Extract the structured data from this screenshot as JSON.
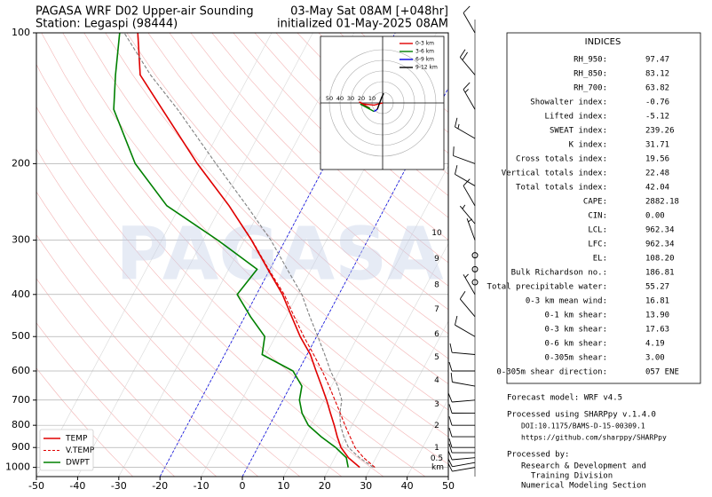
{
  "chart_data": {
    "type": "skewt",
    "title": "PAGASA WRF D02 Upper-air Sounding",
    "subtitle": "Station: Legaspi (98444)",
    "title_right": "03-May Sat 08AM [+048hr]",
    "subtitle_right": "initialized 01-May-2025 08AM",
    "watermark": "PAGASA",
    "pressure": [
      1000,
      950,
      900,
      850,
      800,
      750,
      700,
      650,
      600,
      550,
      500,
      450,
      400,
      350,
      300,
      250,
      200,
      150,
      125,
      100
    ],
    "series": [
      {
        "name": "TEMP",
        "color": "#e00000",
        "dash": false,
        "values": [
          27.3,
          23.3,
          20.2,
          17.9,
          15.7,
          13.2,
          10.6,
          7.6,
          4.3,
          0.8,
          -4.0,
          -8.6,
          -13.7,
          -20.5,
          -28.2,
          -38.1,
          -51.2,
          -66.7,
          -76.5,
          -82.5
        ]
      },
      {
        "name": "V.TEMP",
        "color": "#e00000",
        "dash": true,
        "values": [
          31.0,
          27.0,
          23.6,
          21.0,
          18.3,
          15.6,
          12.6,
          9.4,
          5.8,
          1.6,
          -3.1,
          -8.0,
          -13.3,
          -20.3,
          -28.1,
          -38.1,
          -51.2,
          -66.7,
          -76.5,
          -82.5
        ]
      },
      {
        "name": "DWPT",
        "color": "#008000",
        "dash": false,
        "values": [
          24.5,
          22.8,
          18.9,
          14.0,
          9.4,
          6.3,
          4.0,
          2.8,
          -1.3,
          -10.9,
          -12.6,
          -18.6,
          -24.7,
          -23.1,
          -36.4,
          -53.2,
          -66.3,
          -78.5,
          -82.5,
          -86.9
        ]
      },
      {
        "color": "#808080",
        "dash": true,
        "values": [
          30.6,
          26.0,
          22.0,
          19.5,
          17.2,
          15.5,
          14.3,
          11.5,
          7.8,
          4.3,
          0.3,
          -4.2,
          -9.0,
          -15.8,
          -23.5,
          -33.8,
          -46.7,
          -63.0,
          -74.0,
          -85.8
        ]
      }
    ],
    "legend": "lower left",
    "log_scale": true,
    "ylim": [
      1050,
      100
    ],
    "yticks": [
      1000,
      900,
      800,
      700,
      600,
      500,
      400,
      300,
      200,
      100
    ],
    "xlim": [
      -50,
      50
    ],
    "xticks": [
      -50,
      -40,
      -30,
      -20,
      -10,
      0,
      10,
      20,
      30,
      40,
      50
    ],
    "isotherm_highlight": [
      -20,
      0
    ],
    "grid": true,
    "heights": {
      "km": [
        10,
        9,
        8,
        7,
        6,
        5,
        4,
        3,
        2,
        1,
        0.5
      ],
      "pressure": [
        289,
        331,
        380,
        433,
        494,
        558,
        631,
        716,
        802,
        902,
        954
      ],
      "unit": "km"
    },
    "wind": {
      "pressure": [
        1000,
        975,
        950,
        925,
        900,
        850,
        800,
        750,
        700,
        650,
        600,
        550,
        500,
        450,
        400,
        375,
        350,
        325,
        300,
        275,
        250,
        225,
        200,
        175,
        150,
        125,
        100
      ],
      "speed": [
        10,
        12,
        12,
        10,
        10,
        10,
        10,
        10,
        10,
        10,
        10,
        10,
        10,
        10,
        8,
        0,
        0,
        0,
        5,
        5,
        10,
        10,
        10,
        15,
        15,
        20,
        10
      ],
      "direction": [
        260,
        260,
        265,
        270,
        270,
        270,
        270,
        270,
        265,
        280,
        270,
        275,
        300,
        320,
        330,
        0,
        0,
        0,
        340,
        320,
        330,
        300,
        290,
        300,
        330,
        320,
        330
      ]
    },
    "hodograph": {
      "rings": [
        10,
        20,
        30,
        40,
        50
      ],
      "segments": [
        {
          "name": "0-3 km",
          "color": "#e00000",
          "u": [
            0,
            -8,
            -18,
            -22,
            -12
          ],
          "v": [
            0,
            -2,
            -1,
            1,
            -5
          ]
        },
        {
          "name": "3-6 km",
          "color": "#008000",
          "u": [
            -12,
            -17,
            -21,
            -8
          ],
          "v": [
            -5,
            -3,
            -1,
            -8
          ]
        },
        {
          "name": "6-9 km",
          "color": "#0000e0",
          "u": [
            -8,
            -5
          ],
          "v": [
            -8,
            -6
          ]
        },
        {
          "name": "9-12 km",
          "color": "#000000",
          "u": [
            -5,
            -1,
            1
          ],
          "v": [
            -6,
            5,
            9
          ]
        }
      ]
    }
  },
  "indices": {
    "title": "INDICES",
    "rows": [
      [
        "RH_950:",
        "97.47"
      ],
      [
        "RH_850:",
        "83.12"
      ],
      [
        "RH_700:",
        "63.82"
      ],
      [
        "Showalter index:",
        "-0.76"
      ],
      [
        "Lifted index:",
        "-5.12"
      ],
      [
        "SWEAT index:",
        "239.26"
      ],
      [
        "K index:",
        "31.71"
      ],
      [
        "Cross totals index:",
        "19.56"
      ],
      [
        "Vertical totals index:",
        "22.48"
      ],
      [
        "Total totals index:",
        "42.04"
      ],
      [
        "CAPE:",
        "2882.18"
      ],
      [
        "CIN:",
        "0.00"
      ],
      [
        "LCL:",
        "962.34"
      ],
      [
        "LFC:",
        "962.34"
      ],
      [
        "EL:",
        "108.20"
      ],
      [
        "Bulk Richardson no.:",
        "186.81"
      ],
      [
        "Total precipitable water:",
        "55.27"
      ],
      [
        "0-3 km mean wind:",
        "16.81"
      ],
      [
        "0-1 km shear:",
        "13.90"
      ],
      [
        "0-3 km shear:",
        "17.63"
      ],
      [
        "0-6 km shear:",
        "4.19"
      ],
      [
        "0-305m shear:",
        "3.00"
      ],
      [
        "0-305m shear direction:",
        "057 ENE"
      ]
    ]
  },
  "footer": [
    "Forecast model: WRF v4.5",
    "Processed using SHARPpy v.1.4.0",
    "DOI:10.1175/BAMS-D-15-00309.1",
    "https://github.com/sharppy/SHARPpy",
    "Processed by:",
    "Research & Development and",
    "Training Division",
    "Numerical Modeling Section"
  ]
}
